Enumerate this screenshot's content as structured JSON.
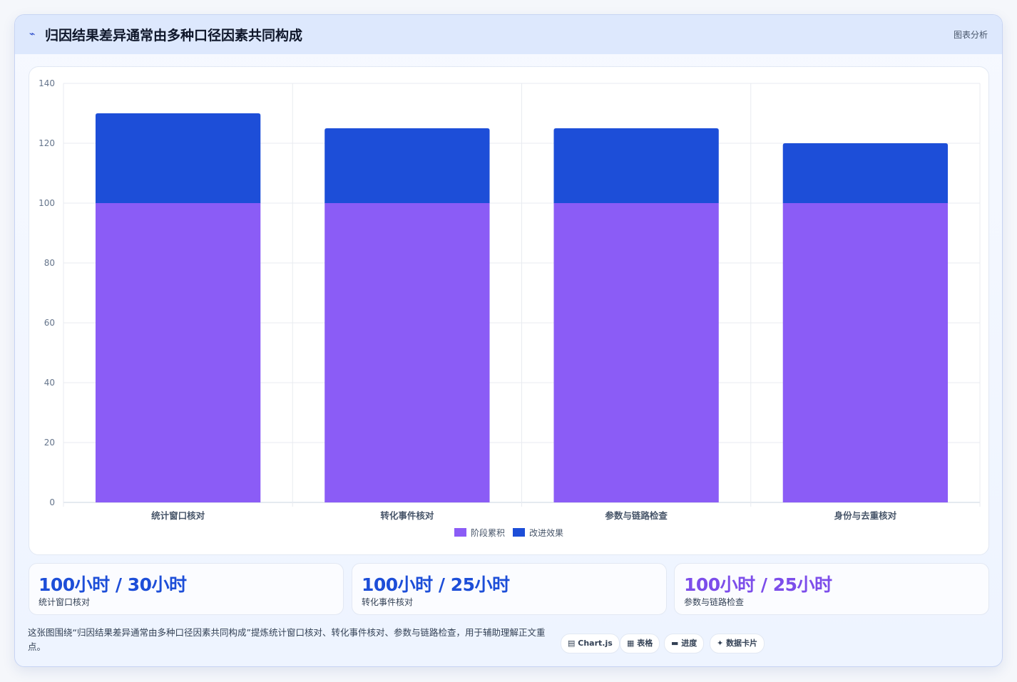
{
  "header": {
    "icon": "chart-line-icon",
    "title": "归因结果差异通常由多种口径因素共同构成",
    "tag": "图表分析"
  },
  "chart_data": {
    "type": "bar",
    "stacked": true,
    "categories": [
      "统计窗口核对",
      "转化事件核对",
      "参数与链路检查",
      "身份与去重核对"
    ],
    "series": [
      {
        "name": "阶段累积",
        "values": [
          100,
          100,
          100,
          100
        ],
        "color": "#8b5cf6"
      },
      {
        "name": "改进效果",
        "values": [
          30,
          25,
          25,
          20
        ],
        "color": "#1d4ed8"
      }
    ],
    "ylim": [
      0,
      140
    ],
    "yticks": [
      0,
      20,
      40,
      60,
      80,
      100,
      120,
      140
    ],
    "grid": true,
    "legend_position": "bottom"
  },
  "kpis": [
    {
      "value": "100小时 / 30小时",
      "label": "统计窗口核对",
      "color": "#1d4ed8"
    },
    {
      "value": "100小时 / 25小时",
      "label": "转化事件核对",
      "color": "#1d4ed8"
    },
    {
      "value": "100小时 / 25小时",
      "label": "参数与链路检查",
      "color": "#7c4dea"
    }
  ],
  "description": "这张图围绕“归因结果差异通常由多种口径因素共同构成”提炼统计窗口核对、转化事件核对、参数与链路检查，用于辅助理解正文重点。",
  "pills": [
    {
      "icon": "window-icon",
      "glyph": "▤",
      "label": "Chart.js"
    },
    {
      "icon": "table-icon",
      "glyph": "▦",
      "label": "表格"
    },
    {
      "icon": "progress-icon",
      "glyph": "▬",
      "label": "进度"
    },
    {
      "icon": "sparkle-icon",
      "glyph": "✦",
      "label": "数据卡片"
    }
  ]
}
